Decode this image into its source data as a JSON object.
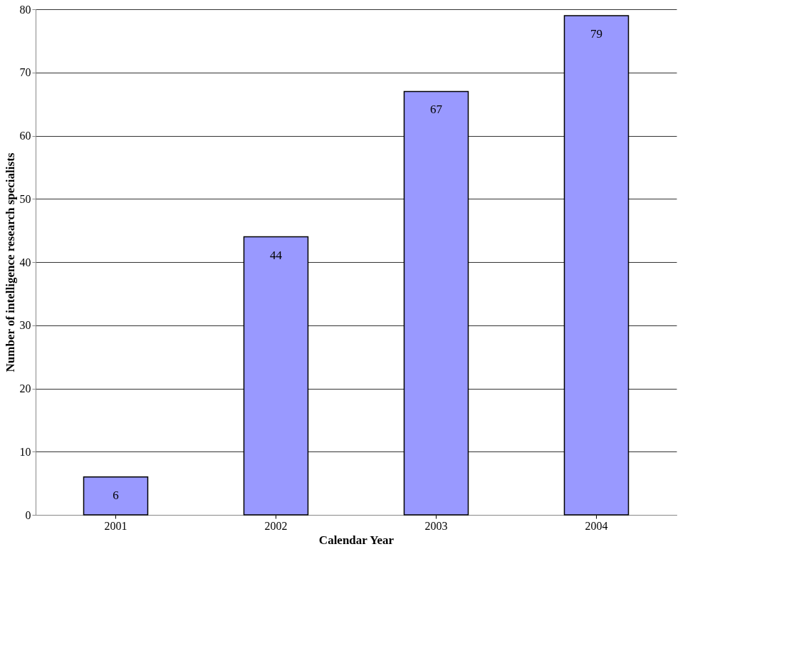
{
  "chart_data": {
    "type": "bar",
    "categories": [
      "2001",
      "2002",
      "2003",
      "2004"
    ],
    "values": [
      6,
      44,
      67,
      79
    ],
    "color": "#9999ff",
    "xlabel": "Calendar Year",
    "ylabel": "Number of intelligence research specialists",
    "ylim": [
      0,
      80
    ],
    "yticks": [
      0,
      10,
      20,
      30,
      40,
      50,
      60,
      70,
      80
    ],
    "grid": "y",
    "data_labels": true
  }
}
